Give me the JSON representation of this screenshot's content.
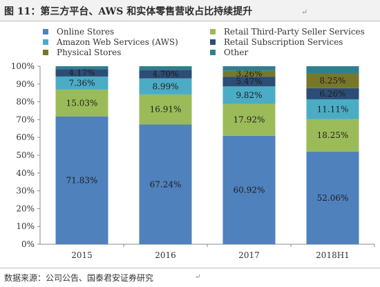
{
  "figure": {
    "title": "图 11：第三方平台、AWS 和实体零售营收占比持续提升",
    "title_mark": "↵",
    "footer": "数据来源：公司公告、国泰君安证券研究",
    "footer_mark": "↵"
  },
  "chart_data": {
    "type": "bar",
    "stacked": true,
    "categories": [
      "2015",
      "2016",
      "2017",
      "2018H1"
    ],
    "y_ticks": [
      "0%",
      "10%",
      "20%",
      "30%",
      "40%",
      "50%",
      "60%",
      "70%",
      "80%",
      "90%",
      "100%"
    ],
    "ylim": [
      0,
      100
    ],
    "grid": false,
    "legend_position": "top",
    "series": [
      {
        "name": "Online Stores",
        "color": "#4f81bd",
        "values": [
          71.83,
          67.24,
          60.92,
          52.06
        ],
        "labels": [
          "71.83%",
          "67.24%",
          "60.92%",
          "52.06%"
        ]
      },
      {
        "name": "Retail Third-Party Seller Services",
        "color": "#9bbb59",
        "values": [
          15.03,
          16.91,
          17.92,
          18.25
        ],
        "labels": [
          "15.03%",
          "16.91%",
          "17.92%",
          "18.25%"
        ]
      },
      {
        "name": "Amazon Web Services (AWS)",
        "color": "#4bacc6",
        "values": [
          7.36,
          8.99,
          9.82,
          11.11
        ],
        "labels": [
          "7.36%",
          "8.99%",
          "9.82%",
          "11.11%"
        ]
      },
      {
        "name": "Retail Subscription Services",
        "color": "#2c4d75",
        "values": [
          4.17,
          4.7,
          5.47,
          6.26
        ],
        "labels": [
          "4.17%",
          "4.70%",
          "5.47%",
          "6.26%"
        ]
      },
      {
        "name": "Physical Stores",
        "color": "#77772a",
        "values": [
          0,
          0,
          3.26,
          8.25
        ],
        "labels": [
          "",
          "",
          "3.26%",
          "8.25%"
        ]
      },
      {
        "name": "Other",
        "color": "#2f7f8f",
        "values": [
          1.61,
          2.16,
          2.61,
          4.07
        ],
        "labels": [
          "",
          "",
          "",
          ""
        ]
      }
    ]
  }
}
